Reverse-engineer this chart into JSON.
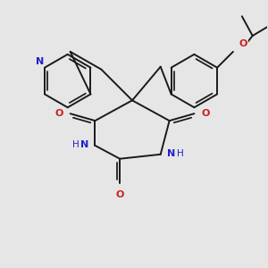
{
  "bg_color": "#e6e6e6",
  "bond_color": "#1a1a1a",
  "N_color": "#2020cc",
  "O_color": "#cc2020",
  "lw": 1.4,
  "figsize": [
    3.0,
    3.0
  ],
  "dpi": 100,
  "xlim": [
    0,
    300
  ],
  "ylim": [
    0,
    300
  ]
}
